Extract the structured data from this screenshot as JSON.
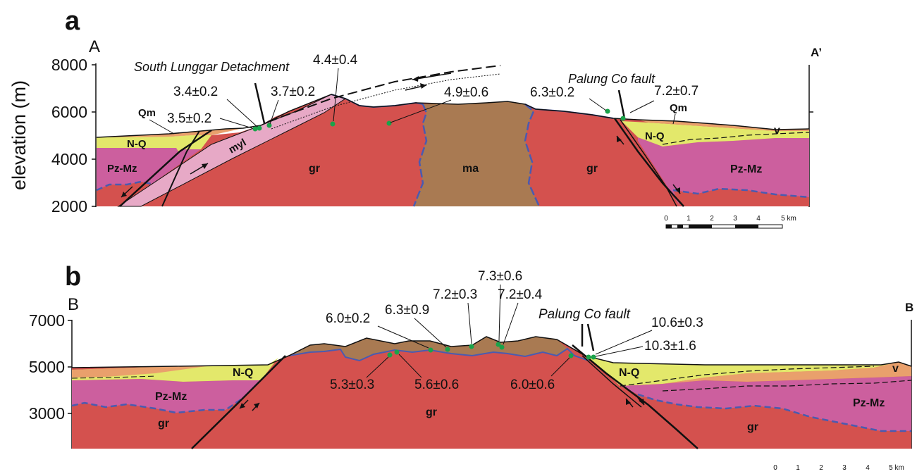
{
  "panels": {
    "a": {
      "label": "a",
      "left_end": "A",
      "right_end": "A’",
      "y_axis_label": "elevation (m)",
      "y_ticks": [
        "8000",
        "6000",
        "4000",
        "2000"
      ],
      "structures": {
        "detachment": "South Lunggar Detachment",
        "fault": "Palung Co fault"
      },
      "units": {
        "qm_left": "Qm",
        "nq": "N-Q",
        "pzmz_left": "Pz-Mz",
        "myl": "myl",
        "gr_left": "gr",
        "ma": "ma",
        "gr_right": "gr",
        "qm_right": "Qm",
        "nq_right": "N-Q",
        "v": "v",
        "pzmz_right": "Pz-Mz"
      },
      "ages": [
        "4.4±0.4",
        "3.4±0.2",
        "3.7±0.2",
        "3.5±0.2",
        "4.9±0.6",
        "6.3±0.2",
        "7.2±0.7"
      ],
      "scale_ticks": [
        "0",
        "1",
        "2",
        "3",
        "4",
        "5 km"
      ]
    },
    "b": {
      "label": "b",
      "left_end": "B",
      "right_end": "B",
      "y_ticks": [
        "7000",
        "5000",
        "3000"
      ],
      "structures": {
        "fault": "Palung Co fault"
      },
      "units": {
        "nq_left": "N-Q",
        "pzmz_left": "Pz-Mz",
        "gr_left": "gr",
        "gr_center": "gr",
        "nq_right": "N-Q",
        "v": "v",
        "pzmz_right": "Pz-Mz",
        "gr_right": "gr"
      },
      "ages": [
        "7.3±0.6",
        "7.2±0.3",
        "7.2±0.4",
        "6.3±0.9",
        "6.0±0.2",
        "10.6±0.3",
        "10.3±1.6",
        "5.3±0.3",
        "5.6±0.6",
        "6.0±0.6"
      ],
      "scale_ticks": [
        "0",
        "1",
        "2",
        "3",
        "4",
        "5 km"
      ]
    }
  },
  "colors": {
    "granite": "#d4514e",
    "metasediment": "#a97a52",
    "paleo_mesozoic": "#cc5f9e",
    "neogene_quaternary": "#e3e86b",
    "moraine": "#e9a06c",
    "mylonite": "#e7a9c6",
    "contact": "#4a5bb0",
    "sample": "#1aa34a"
  }
}
